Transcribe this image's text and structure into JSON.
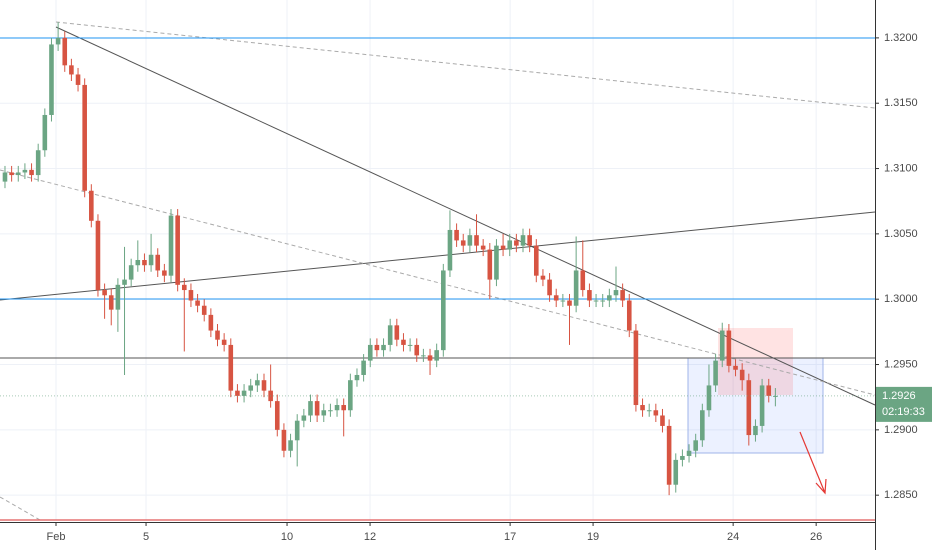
{
  "chart_data": {
    "type": "candlestick",
    "up_color": "#6ba583",
    "down_color": "#d75442",
    "grid": true,
    "xlim": [
      -0.75,
      131
    ],
    "ylim": [
      1.2831,
      1.3229
    ],
    "xticks": [
      {
        "value": 7.68,
        "label": "Feb"
      },
      {
        "value": 21.24,
        "label": "5"
      },
      {
        "value": 42.47,
        "label": "10"
      },
      {
        "value": 54.97,
        "label": "12"
      },
      {
        "value": 76.06,
        "label": "17"
      },
      {
        "value": 88.55,
        "label": "19"
      },
      {
        "value": 109.64,
        "label": "24"
      },
      {
        "value": 122.14,
        "label": "26"
      }
    ],
    "yticks": [
      {
        "value": 1.285,
        "label": "1.2850"
      },
      {
        "value": 1.29,
        "label": "1.2900"
      },
      {
        "value": 1.295,
        "label": "1.2950"
      },
      {
        "value": 1.3,
        "label": "1.3000"
      },
      {
        "value": 1.305,
        "label": "1.3050"
      },
      {
        "value": 1.31,
        "label": "1.3100"
      },
      {
        "value": 1.315,
        "label": "1.3150"
      },
      {
        "value": 1.32,
        "label": "1.3200"
      }
    ],
    "countdown": "02:19:33",
    "x": [
      0,
      1,
      2,
      3,
      4,
      5,
      6,
      7,
      8,
      9,
      10,
      11,
      12,
      13,
      14,
      15,
      16,
      17,
      18,
      19,
      20,
      21,
      22,
      23,
      24,
      25,
      26,
      27,
      28,
      29,
      30,
      31,
      32,
      33,
      34,
      35,
      36,
      37,
      38,
      39,
      40,
      41,
      42,
      43,
      44,
      45,
      46,
      47,
      48,
      49,
      50,
      51,
      52,
      53,
      54,
      55,
      56,
      57,
      58,
      59,
      60,
      61,
      62,
      63,
      64,
      65,
      66,
      67,
      68,
      69,
      70,
      71,
      72,
      73,
      74,
      75,
      76,
      77,
      78,
      79,
      80,
      81,
      82,
      83,
      84,
      85,
      86,
      87,
      88,
      89,
      90,
      91,
      92,
      93,
      94,
      95,
      96,
      97,
      98,
      99,
      100,
      101,
      102,
      103,
      104,
      105,
      106,
      107,
      108,
      109,
      110,
      111,
      112,
      113,
      114,
      115,
      116
    ],
    "open": [
      1.309,
      1.3097,
      1.3095,
      1.3097,
      1.3099,
      1.3095,
      1.3114,
      1.3141,
      1.3195,
      1.32,
      1.3179,
      1.3172,
      1.3164,
      1.3083,
      1.306,
      1.3007,
      1.3003,
      1.2992,
      1.3011,
      1.3015,
      1.3026,
      1.303,
      1.3026,
      1.3034,
      1.3022,
      1.3018,
      1.3064,
      1.3011,
      1.3007,
      1.2999,
      1.2995,
      1.2988,
      1.2976,
      1.2969,
      1.2965,
      1.293,
      1.2926,
      1.293,
      1.2934,
      1.2938,
      1.293,
      1.2922,
      1.29,
      1.2884,
      1.2892,
      1.2907,
      1.2911,
      1.2922,
      1.2911,
      1.2915,
      1.2915,
      1.2919,
      1.2915,
      1.2938,
      1.2942,
      1.2953,
      1.2965,
      1.2961,
      1.2965,
      1.298,
      1.2969,
      1.2965,
      1.2965,
      1.2957,
      1.2957,
      1.2953,
      1.2961,
      1.3022,
      1.3053,
      1.3045,
      1.3041,
      1.3049,
      1.3041,
      1.3038,
      1.3015,
      1.3041,
      1.3038,
      1.3045,
      1.3041,
      1.3049,
      1.3041,
      1.3018,
      1.3015,
      1.3003,
      1.2999,
      1.2999,
      1.2995,
      1.3022,
      1.3007,
      1.2999,
      1.2999,
      1.2999,
      1.3003,
      1.3007,
      1.2999,
      1.2976,
      1.2919,
      1.2915,
      1.2915,
      1.2911,
      1.2903,
      1.2858,
      1.2877,
      1.288,
      1.2884,
      1.2892,
      1.2915,
      1.2934,
      1.2953,
      1.2976,
      1.2949,
      1.2946,
      1.2938,
      1.2896,
      1.2903,
      1.2934,
      1.2926
    ],
    "high": [
      1.3102,
      1.3102,
      1.3102,
      1.3104,
      1.3104,
      1.3119,
      1.3146,
      1.32,
      1.3212,
      1.3205,
      1.3184,
      1.3177,
      1.3169,
      1.3088,
      1.3065,
      1.3012,
      1.3008,
      1.3016,
      1.304,
      1.3031,
      1.3045,
      1.3035,
      1.305,
      1.3039,
      1.3027,
      1.3069,
      1.3069,
      1.3016,
      1.3012,
      1.3004,
      1.3,
      1.2993,
      1.2981,
      1.2974,
      1.297,
      1.2935,
      1.2935,
      1.2939,
      1.2943,
      1.2943,
      1.295,
      1.2927,
      1.2905,
      1.2897,
      1.2912,
      1.2916,
      1.2927,
      1.2927,
      1.292,
      1.292,
      1.2924,
      1.2924,
      1.2943,
      1.2947,
      1.2958,
      1.297,
      1.297,
      1.297,
      1.2985,
      1.2985,
      1.2974,
      1.297,
      1.297,
      1.2962,
      1.2962,
      1.2966,
      1.3027,
      1.3068,
      1.3058,
      1.305,
      1.3054,
      1.3065,
      1.3046,
      1.3043,
      1.3046,
      1.305,
      1.305,
      1.305,
      1.3054,
      1.3054,
      1.3046,
      1.3023,
      1.302,
      1.3008,
      1.3004,
      1.3004,
      1.3048,
      1.3045,
      1.3012,
      1.3004,
      1.3004,
      1.3008,
      1.3025,
      1.3012,
      1.3004,
      1.2981,
      1.2924,
      1.292,
      1.292,
      1.2916,
      1.2908,
      1.2882,
      1.2885,
      1.2889,
      1.2897,
      1.292,
      1.295,
      1.2958,
      1.2982,
      1.2981,
      1.2954,
      1.2951,
      1.2943,
      1.2908,
      1.2939,
      1.2939,
      1.2932
    ],
    "low": [
      1.3085,
      1.309,
      1.309,
      1.3092,
      1.309,
      1.309,
      1.3109,
      1.3136,
      1.319,
      1.3174,
      1.3167,
      1.3159,
      1.3078,
      1.3055,
      1.3002,
      1.2985,
      1.298,
      1.2975,
      1.2942,
      1.301,
      1.3021,
      1.3021,
      1.3021,
      1.3017,
      1.3013,
      1.3013,
      1.3006,
      1.296,
      1.2994,
      1.299,
      1.2983,
      1.2971,
      1.2964,
      1.296,
      1.2925,
      1.2921,
      1.2921,
      1.2925,
      1.2929,
      1.2925,
      1.2917,
      1.2895,
      1.2879,
      1.2879,
      1.2872,
      1.2902,
      1.2906,
      1.2906,
      1.2906,
      1.291,
      1.291,
      1.2895,
      1.291,
      1.2933,
      1.2937,
      1.2948,
      1.2956,
      1.2956,
      1.296,
      1.2964,
      1.296,
      1.296,
      1.2952,
      1.2952,
      1.2942,
      1.2948,
      1.2956,
      1.3017,
      1.304,
      1.3036,
      1.3036,
      1.3036,
      1.3033,
      1.3,
      1.301,
      1.3033,
      1.3033,
      1.3036,
      1.3036,
      1.3036,
      1.3013,
      1.301,
      1.2998,
      1.2994,
      1.2994,
      1.2965,
      1.299,
      1.3002,
      1.2994,
      1.2994,
      1.2994,
      1.2994,
      1.2998,
      1.2994,
      1.2971,
      1.2914,
      1.291,
      1.291,
      1.2906,
      1.2898,
      1.285,
      1.2852,
      1.2872,
      1.2875,
      1.2879,
      1.2887,
      1.291,
      1.2929,
      1.2948,
      1.2944,
      1.2941,
      1.293,
      1.2888,
      1.2891,
      1.2898,
      1.2921,
      1.2918
    ],
    "close": [
      1.3097,
      1.3095,
      1.3097,
      1.3099,
      1.3095,
      1.3114,
      1.3141,
      1.3195,
      1.32,
      1.3179,
      1.3172,
      1.3164,
      1.3083,
      1.306,
      1.3007,
      1.3003,
      1.2992,
      1.3011,
      1.3015,
      1.3026,
      1.303,
      1.3026,
      1.3034,
      1.3022,
      1.3018,
      1.3064,
      1.3011,
      1.3007,
      1.2999,
      1.2995,
      1.2988,
      1.2976,
      1.2969,
      1.2965,
      1.293,
      1.2926,
      1.293,
      1.2934,
      1.2938,
      1.293,
      1.2922,
      1.29,
      1.2884,
      1.2892,
      1.2907,
      1.2911,
      1.2922,
      1.2911,
      1.2915,
      1.2915,
      1.2919,
      1.2915,
      1.2938,
      1.2942,
      1.2953,
      1.2965,
      1.2961,
      1.2965,
      1.298,
      1.2969,
      1.2965,
      1.2965,
      1.2957,
      1.2957,
      1.2953,
      1.2961,
      1.3022,
      1.3053,
      1.3045,
      1.3041,
      1.3049,
      1.3041,
      1.3038,
      1.3015,
      1.3041,
      1.3038,
      1.3045,
      1.3041,
      1.3049,
      1.3041,
      1.3018,
      1.3015,
      1.3003,
      1.2999,
      1.2999,
      1.2995,
      1.3022,
      1.3007,
      1.2999,
      1.2999,
      1.2999,
      1.3003,
      1.3007,
      1.2999,
      1.2976,
      1.2919,
      1.2915,
      1.2915,
      1.2911,
      1.2903,
      1.2858,
      1.2877,
      1.288,
      1.2884,
      1.2892,
      1.2915,
      1.2934,
      1.2953,
      1.2976,
      1.2949,
      1.2946,
      1.2938,
      1.2896,
      1.2903,
      1.2934,
      1.2926,
      1.2926
    ]
  }
}
